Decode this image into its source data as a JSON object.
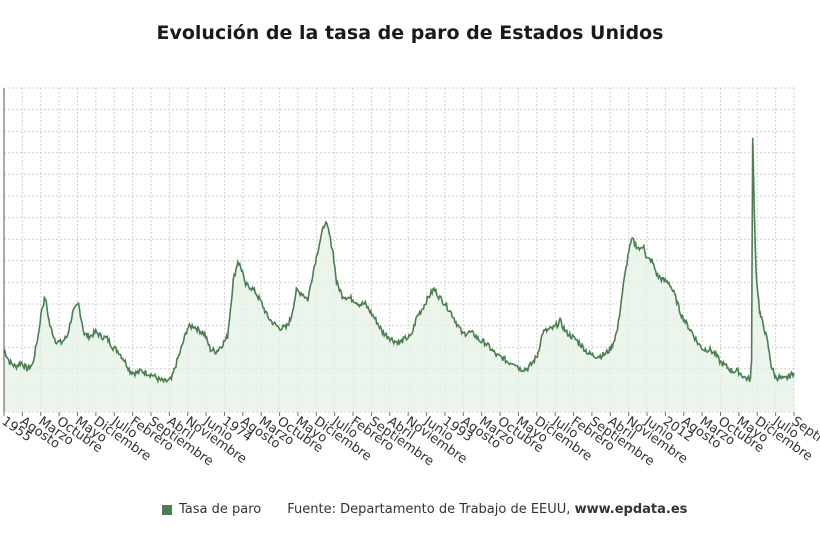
{
  "chart_data": {
    "type": "area",
    "title": "Evolución de la tasa de paro de Estados Unidos",
    "series": [
      {
        "name": "Tasa de paro",
        "color": "#4b7f52",
        "fill": "#e6f2e6"
      }
    ],
    "x_tick_labels": [
      "1955",
      "Agosto",
      "Marzo",
      "Octubre",
      "Mayo",
      "Diciembre",
      "Julio",
      "Febrero",
      "Septiembre",
      "Abril",
      "Noviembre",
      "Junio",
      "1974",
      "Agosto",
      "Marzo",
      "Octubre",
      "Mayo",
      "Diciembre",
      "Julio",
      "Febrero",
      "Septiembre",
      "Abril",
      "Noviembre",
      "Junio",
      "1993",
      "Agosto",
      "Marzo",
      "Octubre",
      "Mayo",
      "Diciembre",
      "Julio",
      "Febrero",
      "Septiembre",
      "Abril",
      "Noviembre",
      "Junio",
      "2012",
      "Agosto",
      "Marzo",
      "Octubre",
      "Mayo",
      "Diciembre",
      "Julio",
      "Septiembre"
    ],
    "x_range": [
      1955.0,
      2023.9
    ],
    "ylim": [
      2,
      17
    ],
    "grid": true,
    "points": [
      [
        1955.0,
        4.9
      ],
      [
        1955.5,
        4.3
      ],
      [
        1956.0,
        4.1
      ],
      [
        1956.5,
        4.3
      ],
      [
        1957.0,
        4.0
      ],
      [
        1957.5,
        4.2
      ],
      [
        1958.0,
        5.6
      ],
      [
        1958.3,
        6.8
      ],
      [
        1958.6,
        7.3
      ],
      [
        1959.0,
        6.0
      ],
      [
        1959.5,
        5.3
      ],
      [
        1960.0,
        5.2
      ],
      [
        1960.5,
        5.5
      ],
      [
        1961.0,
        6.6
      ],
      [
        1961.5,
        7.0
      ],
      [
        1962.0,
        5.6
      ],
      [
        1962.5,
        5.5
      ],
      [
        1963.0,
        5.7
      ],
      [
        1963.5,
        5.5
      ],
      [
        1964.0,
        5.4
      ],
      [
        1964.5,
        5.0
      ],
      [
        1965.0,
        4.8
      ],
      [
        1965.5,
        4.4
      ],
      [
        1966.0,
        3.9
      ],
      [
        1966.5,
        3.8
      ],
      [
        1967.0,
        3.9
      ],
      [
        1967.5,
        3.8
      ],
      [
        1968.0,
        3.7
      ],
      [
        1968.5,
        3.5
      ],
      [
        1969.0,
        3.4
      ],
      [
        1969.6,
        3.5
      ],
      [
        1970.0,
        4.2
      ],
      [
        1970.5,
        5.0
      ],
      [
        1971.0,
        5.9
      ],
      [
        1971.5,
        6.0
      ],
      [
        1972.0,
        5.8
      ],
      [
        1972.5,
        5.6
      ],
      [
        1973.0,
        4.9
      ],
      [
        1973.5,
        4.8
      ],
      [
        1974.0,
        5.1
      ],
      [
        1974.5,
        5.5
      ],
      [
        1975.0,
        8.1
      ],
      [
        1975.4,
        9.0
      ],
      [
        1975.8,
        8.5
      ],
      [
        1976.0,
        7.9
      ],
      [
        1976.5,
        7.8
      ],
      [
        1977.0,
        7.5
      ],
      [
        1977.5,
        7.0
      ],
      [
        1978.0,
        6.4
      ],
      [
        1978.5,
        6.1
      ],
      [
        1979.0,
        5.9
      ],
      [
        1979.6,
        5.9
      ],
      [
        1980.0,
        6.3
      ],
      [
        1980.5,
        7.6
      ],
      [
        1981.0,
        7.5
      ],
      [
        1981.5,
        7.2
      ],
      [
        1982.0,
        8.6
      ],
      [
        1982.5,
        9.8
      ],
      [
        1983.0,
        10.8
      ],
      [
        1983.3,
        10.4
      ],
      [
        1983.7,
        9.4
      ],
      [
        1984.0,
        8.0
      ],
      [
        1984.5,
        7.4
      ],
      [
        1985.0,
        7.3
      ],
      [
        1985.5,
        7.2
      ],
      [
        1986.0,
        7.0
      ],
      [
        1986.5,
        7.0
      ],
      [
        1987.0,
        6.6
      ],
      [
        1987.5,
        6.2
      ],
      [
        1988.0,
        5.7
      ],
      [
        1988.5,
        5.5
      ],
      [
        1989.0,
        5.3
      ],
      [
        1989.5,
        5.2
      ],
      [
        1990.0,
        5.4
      ],
      [
        1990.5,
        5.5
      ],
      [
        1991.0,
        6.4
      ],
      [
        1991.5,
        6.8
      ],
      [
        1992.0,
        7.3
      ],
      [
        1992.5,
        7.7
      ],
      [
        1993.0,
        7.3
      ],
      [
        1993.5,
        7.0
      ],
      [
        1994.0,
        6.6
      ],
      [
        1994.5,
        6.1
      ],
      [
        1995.0,
        5.6
      ],
      [
        1995.5,
        5.7
      ],
      [
        1996.0,
        5.6
      ],
      [
        1996.5,
        5.3
      ],
      [
        1997.0,
        5.2
      ],
      [
        1997.5,
        4.9
      ],
      [
        1998.0,
        4.6
      ],
      [
        1998.5,
        4.5
      ],
      [
        1999.0,
        4.3
      ],
      [
        1999.5,
        4.3
      ],
      [
        2000.0,
        4.0
      ],
      [
        2000.6,
        4.0
      ],
      [
        2001.0,
        4.2
      ],
      [
        2001.5,
        4.6
      ],
      [
        2002.0,
        5.7
      ],
      [
        2002.5,
        5.8
      ],
      [
        2003.0,
        5.9
      ],
      [
        2003.5,
        6.2
      ],
      [
        2004.0,
        5.7
      ],
      [
        2004.5,
        5.5
      ],
      [
        2005.0,
        5.3
      ],
      [
        2005.5,
        5.0
      ],
      [
        2006.0,
        4.7
      ],
      [
        2006.5,
        4.6
      ],
      [
        2007.0,
        4.6
      ],
      [
        2007.5,
        4.7
      ],
      [
        2008.0,
        5.0
      ],
      [
        2008.5,
        5.8
      ],
      [
        2009.0,
        7.8
      ],
      [
        2009.5,
        9.5
      ],
      [
        2009.8,
        10.0
      ],
      [
        2010.0,
        9.8
      ],
      [
        2010.5,
        9.5
      ],
      [
        2010.8,
        9.8
      ],
      [
        2011.0,
        9.1
      ],
      [
        2011.5,
        9.0
      ],
      [
        2012.0,
        8.3
      ],
      [
        2012.5,
        8.1
      ],
      [
        2013.0,
        8.0
      ],
      [
        2013.5,
        7.4
      ],
      [
        2014.0,
        6.6
      ],
      [
        2014.5,
        6.1
      ],
      [
        2015.0,
        5.7
      ],
      [
        2015.5,
        5.2
      ],
      [
        2016.0,
        4.9
      ],
      [
        2016.5,
        4.9
      ],
      [
        2017.0,
        4.7
      ],
      [
        2017.5,
        4.3
      ],
      [
        2018.0,
        4.1
      ],
      [
        2018.5,
        3.9
      ],
      [
        2019.0,
        3.9
      ],
      [
        2019.6,
        3.6
      ],
      [
        2020.1,
        3.5
      ],
      [
        2020.2,
        4.4
      ],
      [
        2020.3,
        14.7
      ],
      [
        2020.45,
        11.1
      ],
      [
        2020.6,
        8.4
      ],
      [
        2020.9,
        6.7
      ],
      [
        2021.0,
        6.4
      ],
      [
        2021.3,
        5.9
      ],
      [
        2021.6,
        5.2
      ],
      [
        2021.9,
        4.2
      ],
      [
        2022.0,
        4.0
      ],
      [
        2022.3,
        3.6
      ],
      [
        2022.6,
        3.6
      ],
      [
        2023.0,
        3.5
      ],
      [
        2023.3,
        3.6
      ],
      [
        2023.6,
        3.7
      ],
      [
        2023.9,
        3.8
      ]
    ]
  },
  "legend": {
    "label": "Tasa de paro"
  },
  "source": {
    "prefix": "Fuente: Departamento de Trabajo de EEUU,",
    "site": "www.epdata.es"
  }
}
